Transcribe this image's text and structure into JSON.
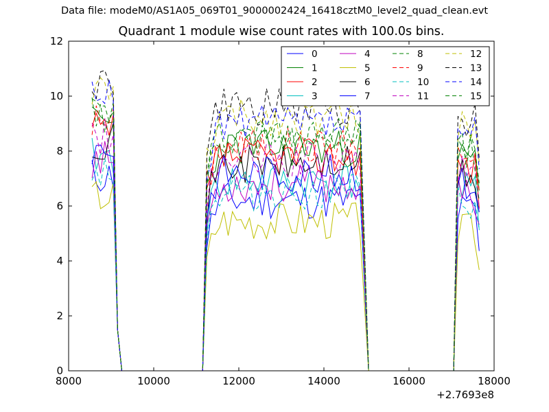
{
  "header": {
    "suptitle": "Data file: modeM0/AS1A05_069T01_9000002424_16418cztM0_level2_quad_clean.evt"
  },
  "chart_data": {
    "type": "line",
    "title": "Quadrant 1 module wise count rates with 100.0s bins.",
    "xlabel": "",
    "ylabel": "",
    "x_offset_label": "+2.7693e8",
    "xlim": [
      8000,
      18000
    ],
    "ylim": [
      0,
      12
    ],
    "xticks": [
      8000,
      10000,
      12000,
      14000,
      16000,
      18000
    ],
    "yticks": [
      0,
      2,
      4,
      6,
      8,
      10,
      12
    ],
    "grid": false,
    "legend_position": "top-right",
    "legend_columns": 4,
    "segments": [
      {
        "start": 8550,
        "end": 9050
      },
      {
        "start": 11250,
        "end": 14850
      },
      {
        "start": 17150,
        "end": 17650
      }
    ],
    "edges": {
      "rise1": [
        8550,
        8550
      ],
      "fall1_start": 9050,
      "fall1_end": 9250,
      "rise2_start": 11150,
      "rise2_end": 11250,
      "fall2_start": 14850,
      "fall2_end": 15050,
      "rise3_start": 17050,
      "rise3_end": 17150
    },
    "series": [
      {
        "name": "0",
        "color": "#0000ff",
        "style": "solid",
        "mean": 6.2,
        "seed": 11
      },
      {
        "name": "1",
        "color": "#008000",
        "style": "solid",
        "mean": 8.1,
        "seed": 23
      },
      {
        "name": "2",
        "color": "#ff0000",
        "style": "solid",
        "mean": 7.8,
        "seed": 37
      },
      {
        "name": "3",
        "color": "#00bfbf",
        "style": "solid",
        "mean": 6.9,
        "seed": 41
      },
      {
        "name": "4",
        "color": "#bf00bf",
        "style": "solid",
        "mean": 6.8,
        "seed": 53
      },
      {
        "name": "5",
        "color": "#bfbf00",
        "style": "solid",
        "mean": 5.5,
        "seed": 67
      },
      {
        "name": "6",
        "color": "#000000",
        "style": "solid",
        "mean": 7.5,
        "seed": 71
      },
      {
        "name": "7",
        "color": "#0000ff",
        "style": "solid",
        "mean": 7.2,
        "seed": 83
      },
      {
        "name": "8",
        "color": "#008000",
        "style": "dashed",
        "mean": 8.6,
        "seed": 97
      },
      {
        "name": "9",
        "color": "#ff0000",
        "style": "dashed",
        "mean": 8.2,
        "seed": 101
      },
      {
        "name": "10",
        "color": "#00bfbf",
        "style": "dashed",
        "mean": 6.5,
        "seed": 113
      },
      {
        "name": "11",
        "color": "#bf00bf",
        "style": "dashed",
        "mean": 7.6,
        "seed": 127
      },
      {
        "name": "12",
        "color": "#bfbf00",
        "style": "dashed",
        "mean": 9.2,
        "seed": 131
      },
      {
        "name": "13",
        "color": "#000000",
        "style": "dashed",
        "mean": 9.6,
        "seed": 149
      },
      {
        "name": "14",
        "color": "#0000ff",
        "style": "dashed",
        "mean": 9.0,
        "seed": 157
      },
      {
        "name": "15",
        "color": "#008000",
        "style": "dashed",
        "mean": 8.4,
        "seed": 163
      }
    ]
  }
}
